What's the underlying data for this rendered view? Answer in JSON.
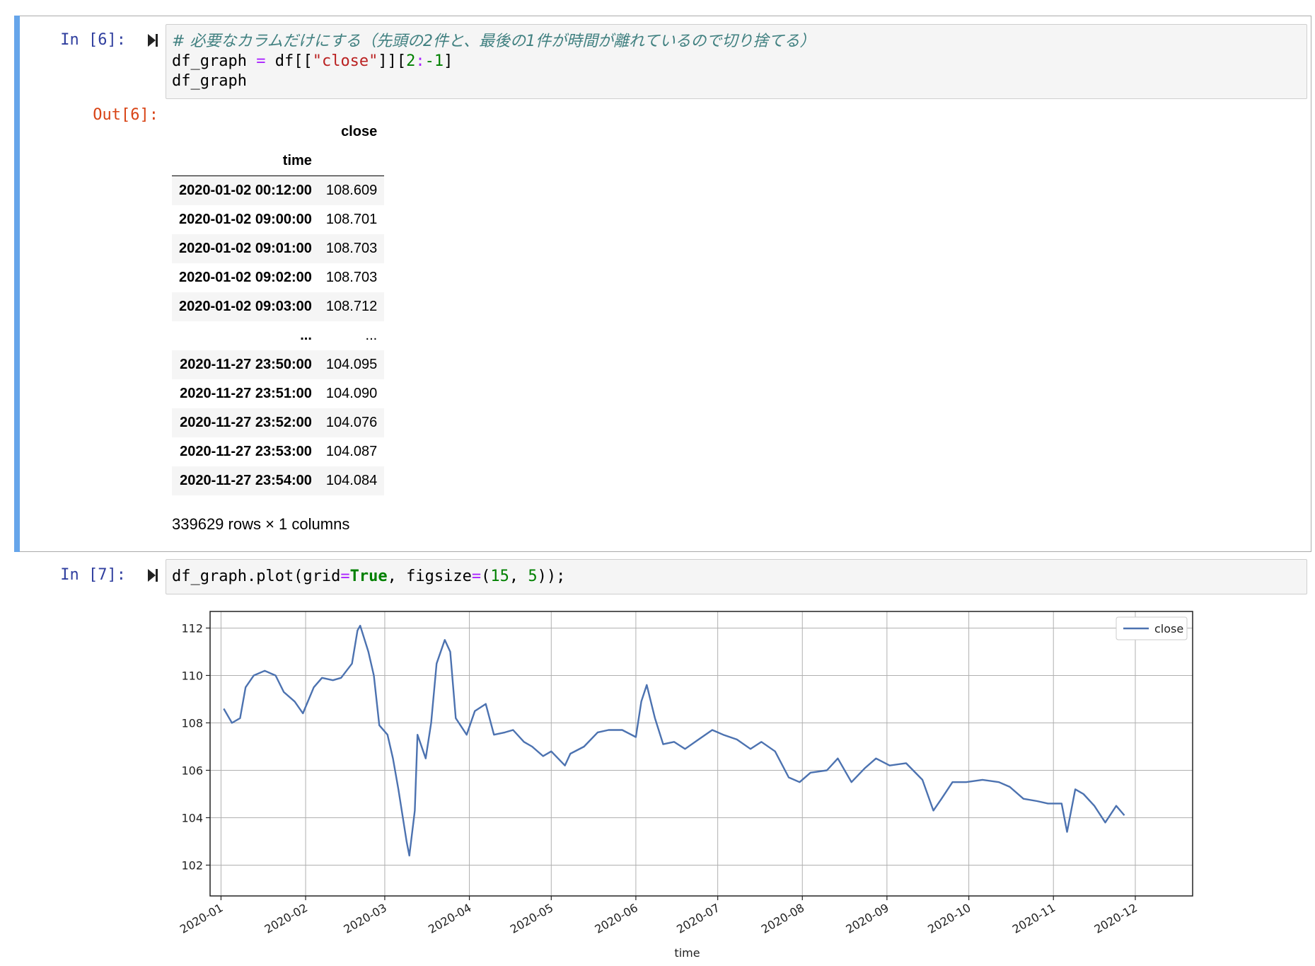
{
  "cell6": {
    "in_prompt": "In [6]:",
    "out_prompt": "Out[6]:",
    "code_line1": "# 必要なカラムだけにする（先頭の2件と、最後の1件が時間が離れているので切り捨てる）",
    "code_line2_a": "df_graph ",
    "code_line2_eq": "=",
    "code_line2_b": " df[[",
    "code_line2_str": "\"close\"",
    "code_line2_c": "]][",
    "code_line2_num1": "2",
    "code_line2_colon": ":",
    "code_line2_num2": "-1",
    "code_line2_d": "]",
    "code_line3": "df_graph",
    "dataframe": {
      "column_header": "close",
      "index_name": "time",
      "rows": [
        {
          "time": "2020-01-02 00:12:00",
          "close": "108.609"
        },
        {
          "time": "2020-01-02 09:00:00",
          "close": "108.701"
        },
        {
          "time": "2020-01-02 09:01:00",
          "close": "108.703"
        },
        {
          "time": "2020-01-02 09:02:00",
          "close": "108.703"
        },
        {
          "time": "2020-01-02 09:03:00",
          "close": "108.712"
        },
        {
          "time": "...",
          "close": "..."
        },
        {
          "time": "2020-11-27 23:50:00",
          "close": "104.095"
        },
        {
          "time": "2020-11-27 23:51:00",
          "close": "104.090"
        },
        {
          "time": "2020-11-27 23:52:00",
          "close": "104.076"
        },
        {
          "time": "2020-11-27 23:53:00",
          "close": "104.087"
        },
        {
          "time": "2020-11-27 23:54:00",
          "close": "104.084"
        }
      ],
      "footer": "339629 rows × 1 columns"
    }
  },
  "cell7": {
    "in_prompt": "In [7]:",
    "code_a": "df_graph.plot(grid",
    "code_eq1": "=",
    "code_true": "True",
    "code_b": ", figsize",
    "code_eq2": "=",
    "code_c": "(",
    "code_n1": "15",
    "code_d": ", ",
    "code_n2": "5",
    "code_e": "));"
  },
  "colors": {
    "line": "#4c72b0",
    "selected_bar": "#66a5ea"
  },
  "chart_data": {
    "type": "line",
    "xlabel": "time",
    "ylabel": "",
    "ylim": [
      100.7,
      112.7
    ],
    "y_ticks": [
      102,
      104,
      106,
      108,
      110,
      112
    ],
    "x_ticks": [
      "2020-01",
      "2020-02",
      "2020-03",
      "2020-04",
      "2020-05",
      "2020-06",
      "2020-07",
      "2020-08",
      "2020-09",
      "2020-10",
      "2020-11",
      "2020-12"
    ],
    "grid": true,
    "legend": "top-right",
    "series": [
      {
        "name": "close",
        "x": [
          "2020-01-02",
          "2020-01-05",
          "2020-01-08",
          "2020-01-10",
          "2020-01-13",
          "2020-01-17",
          "2020-01-21",
          "2020-01-24",
          "2020-01-28",
          "2020-01-31",
          "2020-02-04",
          "2020-02-07",
          "2020-02-11",
          "2020-02-14",
          "2020-02-18",
          "2020-02-20",
          "2020-02-21",
          "2020-02-24",
          "2020-02-26",
          "2020-02-28",
          "2020-03-02",
          "2020-03-04",
          "2020-03-06",
          "2020-03-09",
          "2020-03-10",
          "2020-03-12",
          "2020-03-13",
          "2020-03-16",
          "2020-03-18",
          "2020-03-20",
          "2020-03-23",
          "2020-03-25",
          "2020-03-27",
          "2020-03-31",
          "2020-04-03",
          "2020-04-07",
          "2020-04-10",
          "2020-04-14",
          "2020-04-17",
          "2020-04-21",
          "2020-04-24",
          "2020-04-28",
          "2020-05-01",
          "2020-05-06",
          "2020-05-08",
          "2020-05-13",
          "2020-05-18",
          "2020-05-22",
          "2020-05-27",
          "2020-06-01",
          "2020-06-03",
          "2020-06-05",
          "2020-06-08",
          "2020-06-11",
          "2020-06-15",
          "2020-06-19",
          "2020-06-24",
          "2020-06-29",
          "2020-07-03",
          "2020-07-08",
          "2020-07-13",
          "2020-07-17",
          "2020-07-22",
          "2020-07-27",
          "2020-07-31",
          "2020-08-04",
          "2020-08-10",
          "2020-08-14",
          "2020-08-19",
          "2020-08-24",
          "2020-08-28",
          "2020-09-02",
          "2020-09-08",
          "2020-09-14",
          "2020-09-18",
          "2020-09-21",
          "2020-09-25",
          "2020-09-30",
          "2020-10-06",
          "2020-10-12",
          "2020-10-16",
          "2020-10-21",
          "2020-10-26",
          "2020-10-30",
          "2020-11-04",
          "2020-11-06",
          "2020-11-09",
          "2020-11-12",
          "2020-11-16",
          "2020-11-20",
          "2020-11-24",
          "2020-11-27"
        ],
        "values": [
          108.6,
          108.0,
          108.2,
          109.5,
          110.0,
          110.2,
          110.0,
          109.3,
          108.9,
          108.4,
          109.5,
          109.9,
          109.8,
          109.9,
          110.5,
          111.9,
          112.1,
          111.0,
          110.0,
          107.9,
          107.5,
          106.5,
          105.2,
          103.0,
          102.4,
          104.3,
          107.5,
          106.5,
          108.0,
          110.5,
          111.5,
          111.0,
          108.2,
          107.5,
          108.5,
          108.8,
          107.5,
          107.6,
          107.7,
          107.2,
          107.0,
          106.6,
          106.8,
          106.2,
          106.7,
          107.0,
          107.6,
          107.7,
          107.7,
          107.4,
          108.9,
          109.6,
          108.2,
          107.1,
          107.2,
          106.9,
          107.3,
          107.7,
          107.5,
          107.3,
          106.9,
          107.2,
          106.8,
          105.7,
          105.5,
          105.9,
          106.0,
          106.5,
          105.5,
          106.1,
          106.5,
          106.2,
          106.3,
          105.6,
          104.3,
          104.8,
          105.5,
          105.5,
          105.6,
          105.5,
          105.3,
          104.8,
          104.7,
          104.6,
          104.6,
          103.4,
          105.2,
          105.0,
          104.5,
          103.8,
          104.5,
          104.1
        ]
      }
    ]
  }
}
